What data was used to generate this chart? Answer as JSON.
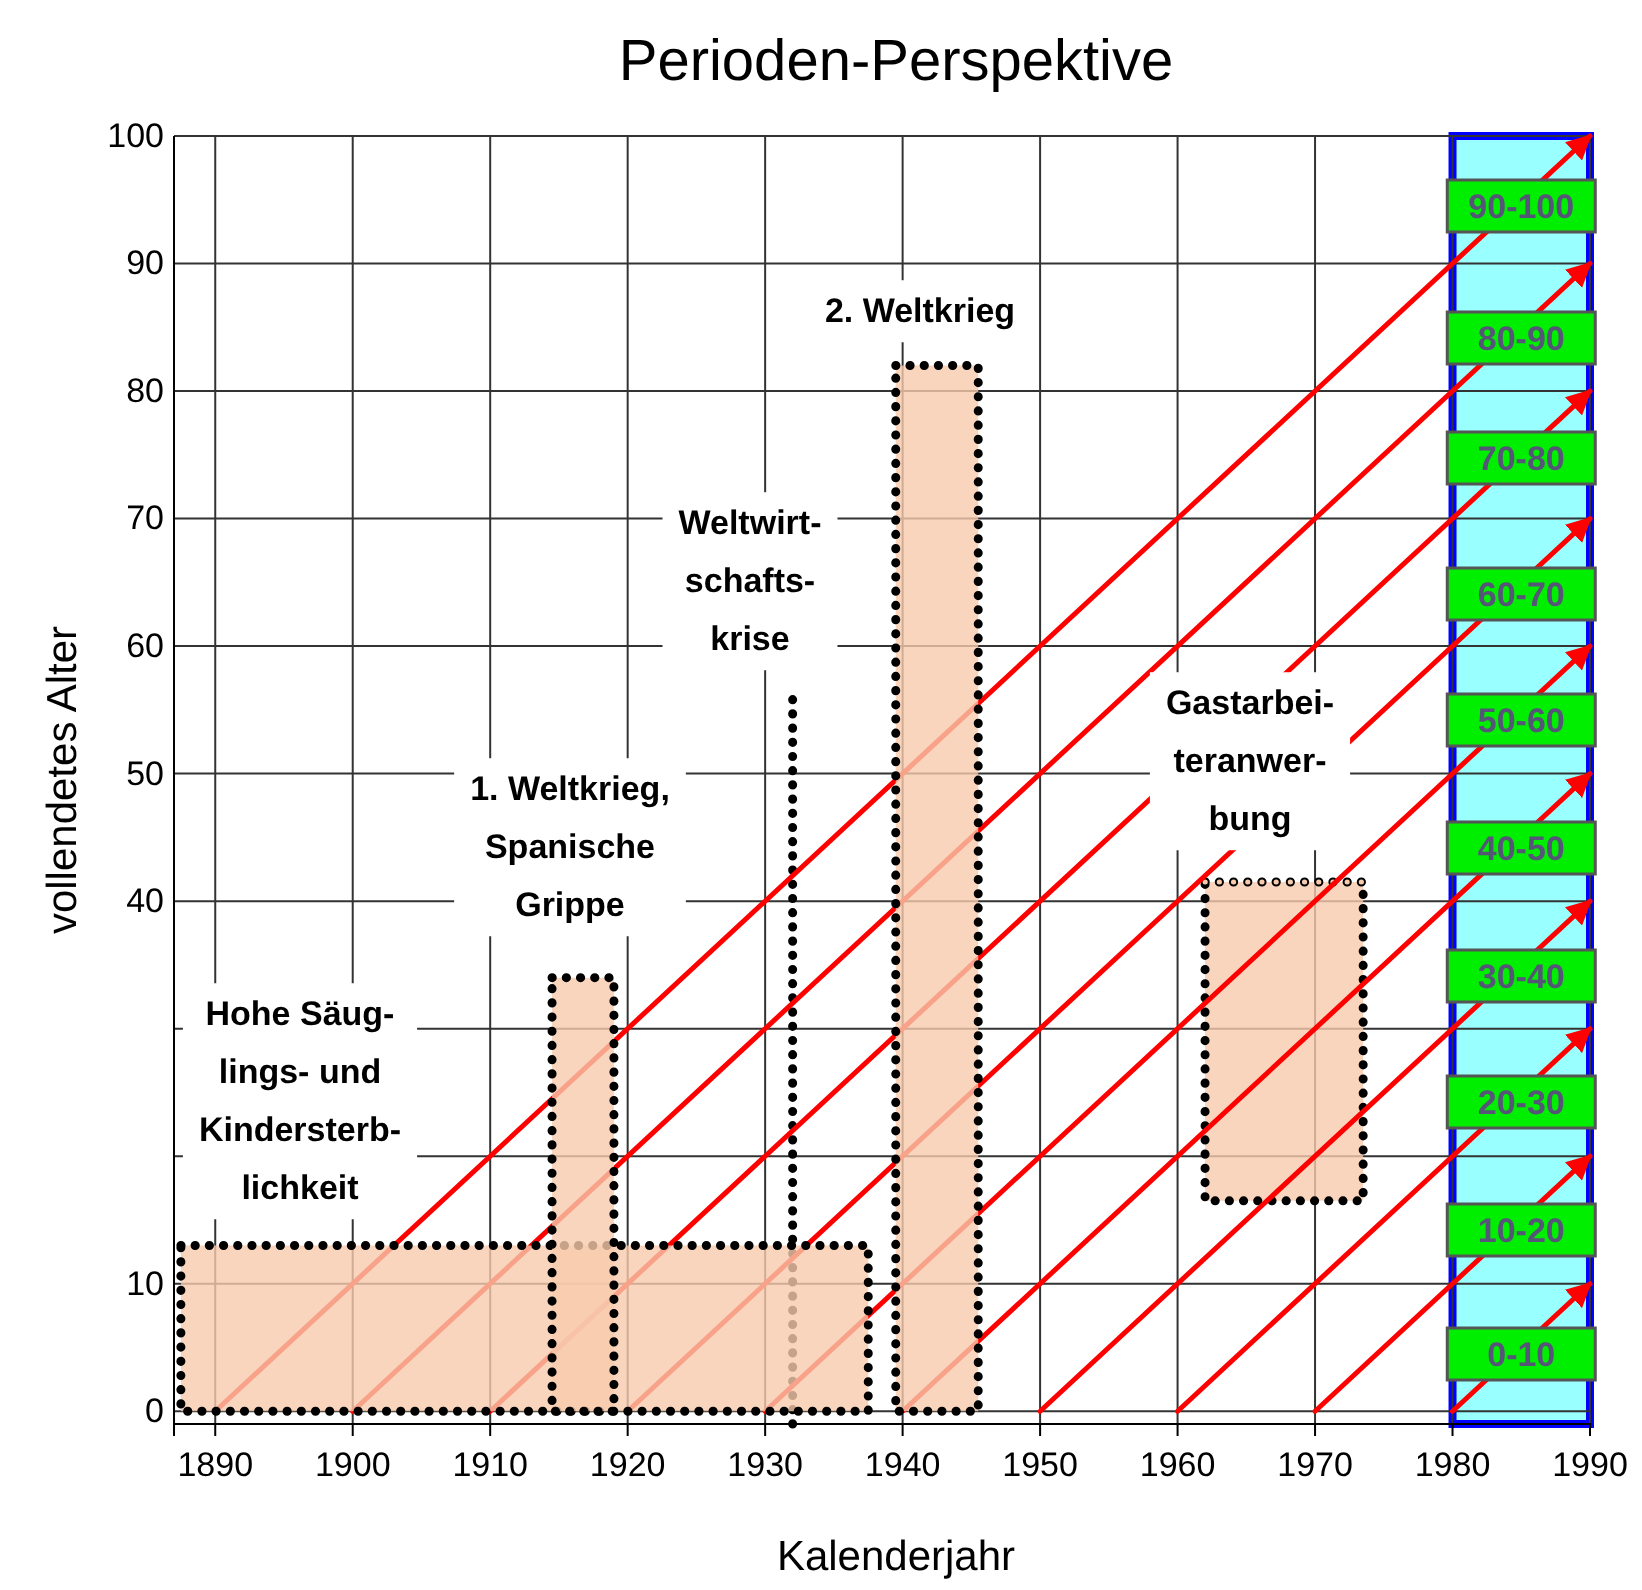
{
  "chart_data": {
    "type": "line",
    "title": "Perioden-Perspektive",
    "xlabel": "Kalenderjahr",
    "ylabel": "vollendetes Alter",
    "xlim": [
      1887,
      1990
    ],
    "xticks": [
      1890,
      1900,
      1910,
      1920,
      1930,
      1940,
      1950,
      1960,
      1970,
      1980,
      1990
    ],
    "ylim": [
      -1,
      100
    ],
    "yticks": [
      0,
      10,
      {
        "value": 20,
        "label": null
      },
      {
        "value": 30,
        "label": null
      },
      40,
      50,
      60,
      70,
      80,
      90,
      100
    ],
    "grid": true,
    "marker": "none",
    "line_style": "solid",
    "bands": [
      {
        "axis": "x",
        "from": 1980,
        "to": 1990,
        "color": "#99ffff"
      }
    ],
    "series": [
      {
        "type": "area",
        "color": "#f8cbad",
        "x": [
          1887.5,
          1937.5
        ],
        "values": [
          13,
          13
        ],
        "line_style": "dotted"
      },
      {
        "type": "area",
        "color": "#f8cbad",
        "x": [
          1914.5,
          1919
        ],
        "values": [
          34,
          34
        ],
        "line_style": "dotted"
      },
      {
        "type": "area",
        "color": "#f8cbad",
        "x": [
          1939.5,
          1945.5
        ],
        "values": [
          82,
          82
        ],
        "line_style": "dotted"
      },
      {
        "type": "line",
        "color": "#f8cbad",
        "x": [
          1962,
          1973.5
        ],
        "values": [
          41.5,
          41.5
        ],
        "lower": [
          16.5,
          16.5
        ],
        "upper": [
          41.5,
          41.5
        ],
        "line_style": "dotted"
      },
      {
        "type": "line",
        "color": "#000000",
        "x": [
          1932,
          1932
        ],
        "values": [
          -1,
          56
        ],
        "line_style": "dotted"
      },
      {
        "color": "#ff0000",
        "x": [
          1890,
          1990
        ],
        "values": [
          0,
          100
        ]
      },
      {
        "color": "#ff0000",
        "x": [
          1900,
          1990
        ],
        "values": [
          0,
          90
        ]
      },
      {
        "color": "#ff0000",
        "x": [
          1910,
          1990
        ],
        "values": [
          0,
          80
        ]
      },
      {
        "color": "#ff0000",
        "x": [
          1920,
          1990
        ],
        "values": [
          0,
          70
        ]
      },
      {
        "color": "#ff0000",
        "x": [
          1930,
          1990
        ],
        "values": [
          0,
          60
        ]
      },
      {
        "color": "#ff0000",
        "x": [
          1940,
          1990
        ],
        "values": [
          0,
          50
        ]
      },
      {
        "color": "#ff0000",
        "x": [
          1950,
          1990
        ],
        "values": [
          0,
          40
        ]
      },
      {
        "color": "#ff0000",
        "x": [
          1960,
          1990
        ],
        "values": [
          0,
          30
        ]
      },
      {
        "color": "#ff0000",
        "x": [
          1970,
          1990
        ],
        "values": [
          0,
          20
        ]
      },
      {
        "color": "#ff0000",
        "x": [
          1980,
          1990
        ],
        "values": [
          0,
          10
        ]
      }
    ],
    "annotations": [
      "Hohe Säug-\nlings- und\nKindersterb-\nlichkeit",
      "1. Weltkrieg,\nSpanische\nGrippe",
      "Weltwirt-\nschafts-\nkrise",
      "2. Weltkrieg",
      "Gastarbei-\nteranwer-\nbung",
      "0-10",
      "10-20",
      "20-30",
      "30-40",
      "40-50",
      "50-60",
      "60-70",
      "70-80",
      "80-90",
      "90-100"
    ]
  }
}
